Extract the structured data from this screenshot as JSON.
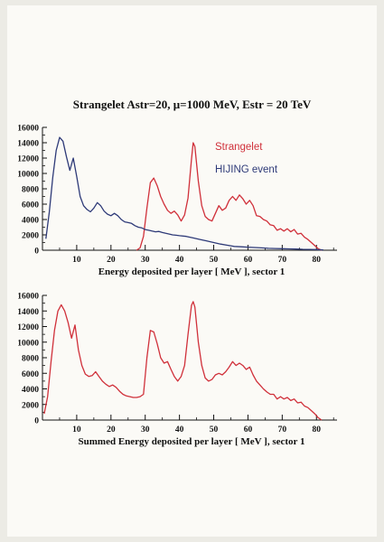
{
  "title": "Strangelet Astr=20, μ=1000 MeV, Estr = 20 TeV",
  "colors": {
    "strangelet": "#d0303a",
    "hijing": "#2e3a78",
    "axis": "#111111"
  },
  "chart_data": [
    {
      "type": "line",
      "xlabel": "Energy deposited per layer [ MeV ], sector 1",
      "ylabel": "",
      "xlim": [
        0,
        86
      ],
      "ylim": [
        0,
        16000
      ],
      "xticks": [
        10,
        20,
        30,
        40,
        50,
        60,
        70,
        80
      ],
      "yticks": [
        0,
        2000,
        4000,
        6000,
        8000,
        10000,
        12000,
        14000,
        16000
      ],
      "legend": "top-right",
      "series": [
        {
          "name": "Strangelet",
          "x": [
            27.5,
            28.5,
            29.5,
            30.5,
            31.5,
            32.5,
            33.5,
            34.5,
            35.5,
            36.5,
            37.5,
            38.5,
            39.5,
            40.5,
            41.5,
            42.5,
            43.5,
            44.0,
            44.5,
            45.5,
            46.5,
            47.5,
            48.5,
            49.5,
            50.5,
            51.5,
            52.5,
            53.5,
            54.5,
            55.5,
            56.5,
            57.5,
            58.5,
            59.5,
            60.5,
            61.5,
            62.5,
            63.5,
            64.5,
            65.5,
            66.5,
            67.5,
            68.5,
            69.5,
            70.5,
            71.5,
            72.5,
            73.5,
            74.5,
            75.5,
            76.5,
            77.5,
            78.5,
            79.5,
            80.5,
            81.5
          ],
          "values": [
            0,
            300,
            1800,
            5500,
            8800,
            9400,
            8400,
            7000,
            6000,
            5200,
            4800,
            5100,
            4600,
            3800,
            4600,
            6800,
            11800,
            14000,
            13500,
            9000,
            5800,
            4400,
            4000,
            3800,
            4800,
            5800,
            5200,
            5500,
            6500,
            7000,
            6500,
            7200,
            6700,
            6000,
            6500,
            5800,
            4500,
            4400,
            4000,
            3800,
            3300,
            3200,
            2600,
            2800,
            2500,
            2800,
            2400,
            2700,
            2100,
            2200,
            1700,
            1400,
            1000,
            600,
            200,
            0
          ]
        },
        {
          "name": "HIJING event",
          "x": [
            1,
            2,
            3,
            4,
            5,
            6,
            7,
            8,
            9,
            10,
            11,
            12,
            13,
            14,
            15,
            16,
            17,
            18,
            19,
            20,
            21,
            22,
            23,
            24,
            25,
            26,
            27,
            28,
            29,
            30,
            31,
            32,
            33,
            34,
            35,
            36,
            37,
            38,
            39,
            40,
            42,
            44,
            46,
            48,
            50,
            52,
            54,
            56,
            58,
            60,
            62,
            64,
            66,
            68,
            70,
            72,
            74,
            76,
            78,
            80,
            82
          ],
          "values": [
            1500,
            5000,
            9500,
            13000,
            14700,
            14200,
            12200,
            10400,
            12000,
            9600,
            7000,
            5800,
            5300,
            5000,
            5500,
            6200,
            5800,
            5100,
            4700,
            4500,
            4800,
            4500,
            4000,
            3700,
            3600,
            3500,
            3200,
            3000,
            2900,
            2700,
            2600,
            2500,
            2400,
            2450,
            2300,
            2200,
            2100,
            2000,
            1950,
            1900,
            1800,
            1600,
            1400,
            1200,
            1000,
            800,
            650,
            500,
            450,
            400,
            350,
            300,
            250,
            220,
            200,
            180,
            150,
            120,
            100,
            80,
            50
          ]
        }
      ]
    },
    {
      "type": "line",
      "xlabel": "Summed Energy deposited per layer [ MeV ], sector 1",
      "ylabel": "",
      "xlim": [
        0,
        86
      ],
      "ylim": [
        0,
        16000
      ],
      "xticks": [
        10,
        20,
        30,
        40,
        50,
        60,
        70,
        80
      ],
      "yticks": [
        0,
        2000,
        4000,
        6000,
        8000,
        10000,
        12000,
        14000,
        16000
      ],
      "series": [
        {
          "name": "",
          "x": [
            0.5,
            1.5,
            2.5,
            3.5,
            4.5,
            5.5,
            6.5,
            7.5,
            8.5,
            9.5,
            10.5,
            11.5,
            12.5,
            13.5,
            14.5,
            15.5,
            16.5,
            17.5,
            18.5,
            19.5,
            20.5,
            21.5,
            22.5,
            23.5,
            24.5,
            25.5,
            26.5,
            27.5,
            28.5,
            29.5,
            30.5,
            31.5,
            32.5,
            33.5,
            34.5,
            35.5,
            36.5,
            37.5,
            38.5,
            39.5,
            40.5,
            41.5,
            42.5,
            43.5,
            44.0,
            44.5,
            45.5,
            46.5,
            47.5,
            48.5,
            49.5,
            50.5,
            51.5,
            52.5,
            53.5,
            54.5,
            55.5,
            56.5,
            57.5,
            58.5,
            59.5,
            60.5,
            61.5,
            62.5,
            63.5,
            64.5,
            65.5,
            66.5,
            67.5,
            68.5,
            69.5,
            70.5,
            71.5,
            72.5,
            73.5,
            74.5,
            75.5,
            76.5,
            77.5,
            78.5,
            79.5,
            80.5,
            81.5
          ],
          "values": [
            800,
            3000,
            7500,
            11500,
            14000,
            14800,
            14000,
            12500,
            10500,
            12200,
            9000,
            7000,
            5900,
            5600,
            5700,
            6200,
            5600,
            5000,
            4600,
            4300,
            4500,
            4200,
            3700,
            3300,
            3100,
            3000,
            2900,
            2900,
            3000,
            3300,
            8000,
            11500,
            11300,
            9800,
            8000,
            7300,
            7500,
            6500,
            5600,
            5000,
            5600,
            7000,
            11000,
            14700,
            15200,
            14500,
            10000,
            7000,
            5400,
            5000,
            5200,
            5800,
            6000,
            5800,
            6200,
            6800,
            7500,
            7000,
            7300,
            7000,
            6500,
            6800,
            5800,
            5000,
            4500,
            4000,
            3600,
            3300,
            3300,
            2700,
            3000,
            2700,
            2900,
            2500,
            2700,
            2200,
            2300,
            1800,
            1600,
            1200,
            800,
            300,
            0
          ]
        }
      ]
    }
  ]
}
